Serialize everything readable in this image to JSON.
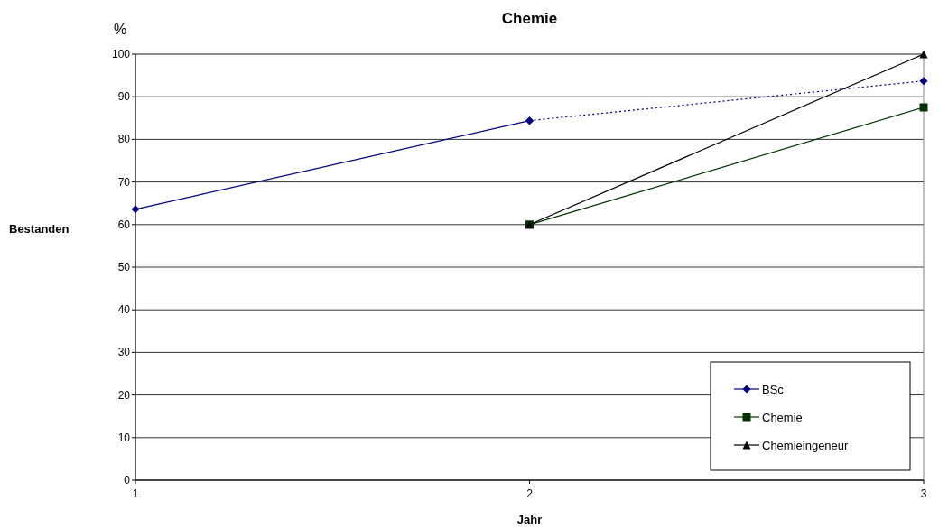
{
  "chart_data": {
    "type": "line",
    "title": "Chemie",
    "xlabel": "Jahr",
    "ylabel": "Bestanden",
    "annotations": [
      "%"
    ],
    "xlim": [
      1,
      3
    ],
    "xticks": [
      1,
      2,
      3
    ],
    "ylim": [
      0,
      100
    ],
    "yticks": [
      0,
      10,
      20,
      30,
      40,
      50,
      60,
      70,
      80,
      90,
      100
    ],
    "grid": "y",
    "legend": "bottom right",
    "series": [
      {
        "name": "BSc",
        "color": "#000080",
        "x": [
          1,
          2
        ],
        "values": [
          63.6,
          84.4
        ],
        "marker": "diamond",
        "line_style": "solid"
      },
      {
        "color": "#000080",
        "x": [
          2,
          3
        ],
        "values": [
          84.4,
          93.7
        ],
        "marker": "diamond",
        "line_style": "dotted"
      },
      {
        "name": "Chemie",
        "color": "#003300",
        "x": [
          2,
          3
        ],
        "values": [
          60,
          87.5
        ],
        "marker": "square",
        "line_style": "solid"
      },
      {
        "name": "Chemieingeneur",
        "color": "#000000",
        "x": [
          2,
          3
        ],
        "values": [
          60,
          100
        ],
        "marker": "triangle",
        "line_style": "solid"
      }
    ]
  }
}
